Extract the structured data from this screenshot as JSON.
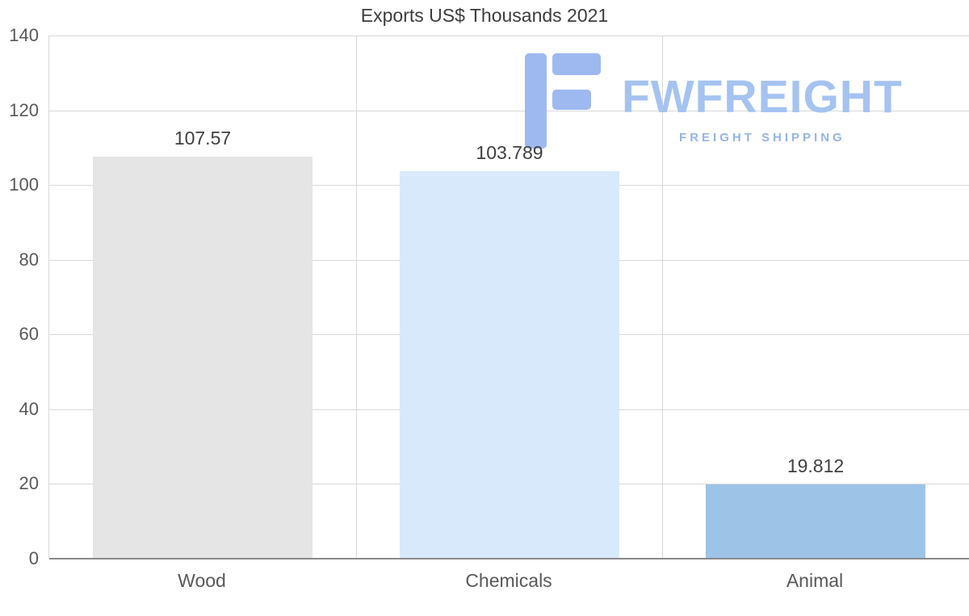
{
  "title": "Exports US$ Thousands 2021",
  "watermark": {
    "brand": "FWFREIGHT",
    "tagline": "FREIGHT SHIPPING",
    "color": "#a5c3f0"
  },
  "chart_data": {
    "type": "bar",
    "title": "Exports US$ Thousands 2021",
    "categories": [
      "Wood",
      "Chemicals",
      "Animal"
    ],
    "values": [
      107.57,
      103.789,
      19.812
    ],
    "value_labels": [
      "107.57",
      "103.789",
      "19.812"
    ],
    "xlabel": "",
    "ylabel": "",
    "ylim": [
      0,
      140
    ],
    "yticks": [
      0,
      20,
      40,
      60,
      80,
      100,
      120,
      140
    ],
    "grid": true,
    "legend": false,
    "grid_color": "#d9d9d9",
    "axis_color": "#8a8a8a",
    "bar_colors": [
      "#e5e5e5",
      "#d8e9fb",
      "#9dc3e6"
    ]
  }
}
